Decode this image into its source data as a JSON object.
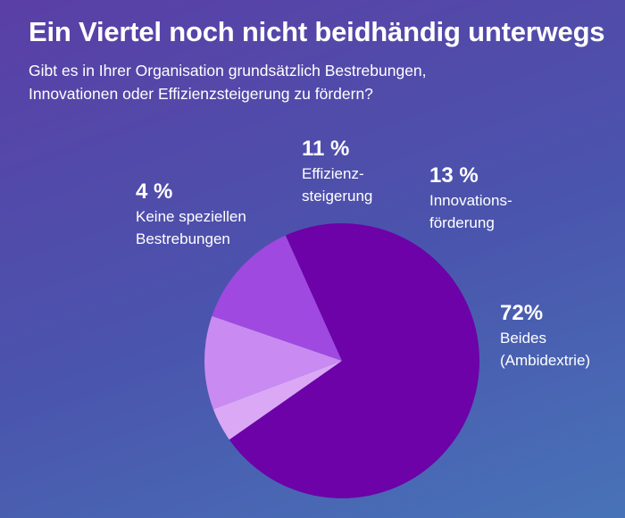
{
  "title": "Ein Viertel noch nicht beidhändig unterwegs",
  "subtitle_lines": [
    "Gibt es in Ihrer Organisation grundsätzlich Bestrebungen,",
    "Innovationen oder Effizienzsteigerung zu fördern?"
  ],
  "chart_data": {
    "type": "pie",
    "title": "Ein Viertel noch nicht beidhändig unterwegs",
    "slices": [
      {
        "label": "Keine speziellen Bestrebungen",
        "label_lines": [
          "Keine speziellen",
          "Bestrebungen"
        ],
        "percent_label": "4 %",
        "value": 4,
        "color": "#dba8f6"
      },
      {
        "label": "Effizienzsteigerung",
        "label_lines": [
          "Effizienz-",
          "steigerung"
        ],
        "percent_label": "11 %",
        "value": 11,
        "color": "#c98bf2"
      },
      {
        "label": "Innovationsförderung",
        "label_lines": [
          "Innovations-",
          "förderung"
        ],
        "percent_label": "13 %",
        "value": 13,
        "color": "#9f49e0"
      },
      {
        "label": "Beides (Ambidextrie)",
        "label_lines": [
          "Beides",
          "(Ambidextrie)"
        ],
        "percent_label": "72%",
        "value": 72,
        "color": "#6c02a8"
      }
    ]
  }
}
